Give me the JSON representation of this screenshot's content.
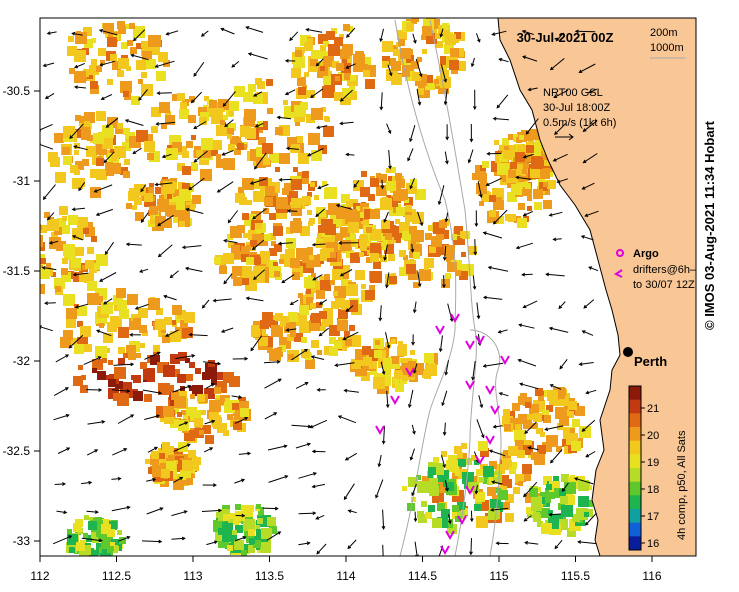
{
  "title": "30-Jul-2021 00Z",
  "depth_legend": {
    "line1": "200m",
    "line2": "1000m"
  },
  "current_legend": {
    "line1": "NRT00 GSL",
    "line2": "30-Jul 18:00Z",
    "line3": "0.5m/s (1kt 6h)"
  },
  "argo_label": "Argo",
  "drifters_label": {
    "line1": "drifters@6h–",
    "line2": "to 30/07 12Z"
  },
  "city": "Perth",
  "colorbar": {
    "title": "4h comp, p50, All Sats",
    "ticks": [
      "21",
      "20",
      "19",
      "18",
      "17",
      "16"
    ],
    "colors": [
      "#8b1a0a",
      "#c23a10",
      "#e06a14",
      "#ee9a1c",
      "#f2c81e",
      "#e8e020",
      "#b6dc28",
      "#5ec82c",
      "#1eb450",
      "#10a0a0",
      "#1060d8",
      "#0a1e9c"
    ]
  },
  "x_ticks": [
    "112",
    "112.5",
    "113",
    "113.5",
    "114",
    "114.5",
    "115",
    "115.5",
    "116"
  ],
  "y_ticks": [
    "-30.5",
    "-31",
    "-31.5",
    "-32",
    "-32.5",
    "-33"
  ],
  "credit": "© IMOS 03-Aug-2021 11:34 Hobart",
  "colors": {
    "land": "#f9c696",
    "argo": "#e000e0",
    "drifter": "#e000e0"
  }
}
